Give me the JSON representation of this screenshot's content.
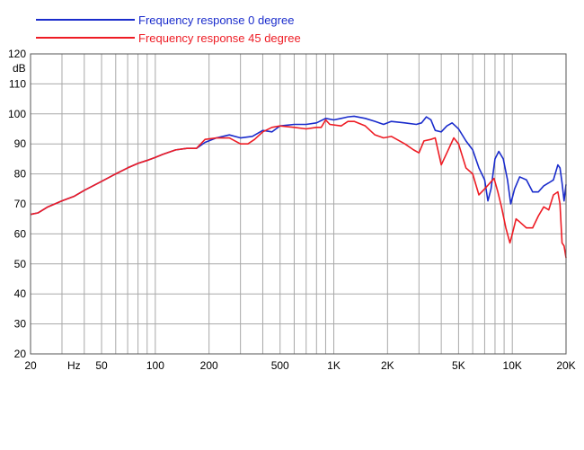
{
  "chart_data": {
    "type": "line",
    "title": "",
    "xlabel": "",
    "ylabel": "dB",
    "x_scale": "log",
    "xlim": [
      20,
      20000
    ],
    "ylim": [
      20,
      120
    ],
    "grid": true,
    "legend_position": "top-left",
    "y_ticks": [
      20,
      30,
      40,
      50,
      60,
      70,
      80,
      90,
      100,
      110,
      120
    ],
    "x_tick_labels": [
      {
        "value": 20,
        "label": "20"
      },
      {
        "value": 35,
        "label": "Hz"
      },
      {
        "value": 50,
        "label": "50"
      },
      {
        "value": 100,
        "label": "100"
      },
      {
        "value": 200,
        "label": "200"
      },
      {
        "value": 500,
        "label": "500"
      },
      {
        "value": 1000,
        "label": "1K"
      },
      {
        "value": 2000,
        "label": "2K"
      },
      {
        "value": 5000,
        "label": "5K"
      },
      {
        "value": 10000,
        "label": "10K"
      },
      {
        "value": 20000,
        "label": "20K"
      }
    ],
    "series": [
      {
        "name": "Frequency response 0 degree",
        "color": "#1a2ccc",
        "points": [
          [
            20,
            66.5
          ],
          [
            22,
            67
          ],
          [
            25,
            69
          ],
          [
            30,
            71
          ],
          [
            35,
            72.5
          ],
          [
            40,
            74.5
          ],
          [
            50,
            77.5
          ],
          [
            60,
            80
          ],
          [
            70,
            82
          ],
          [
            80,
            83.5
          ],
          [
            90,
            84.5
          ],
          [
            100,
            85.5
          ],
          [
            110,
            86.5
          ],
          [
            130,
            88
          ],
          [
            150,
            88.5
          ],
          [
            170,
            88.5
          ],
          [
            190,
            90.5
          ],
          [
            220,
            92
          ],
          [
            260,
            93
          ],
          [
            300,
            92
          ],
          [
            350,
            92.5
          ],
          [
            400,
            94.5
          ],
          [
            450,
            94
          ],
          [
            500,
            96
          ],
          [
            600,
            96.5
          ],
          [
            700,
            96.5
          ],
          [
            800,
            97
          ],
          [
            900,
            98.5
          ],
          [
            1000,
            98
          ],
          [
            1100,
            98.5
          ],
          [
            1200,
            99
          ],
          [
            1300,
            99.2
          ],
          [
            1500,
            98.5
          ],
          [
            1700,
            97.5
          ],
          [
            1900,
            96.5
          ],
          [
            2100,
            97.5
          ],
          [
            2500,
            97
          ],
          [
            2900,
            96.5
          ],
          [
            3100,
            97
          ],
          [
            3300,
            99
          ],
          [
            3500,
            98
          ],
          [
            3700,
            94.5
          ],
          [
            4000,
            94
          ],
          [
            4300,
            96
          ],
          [
            4600,
            97
          ],
          [
            5000,
            95
          ],
          [
            5500,
            91
          ],
          [
            6000,
            88
          ],
          [
            6500,
            82
          ],
          [
            7000,
            78
          ],
          [
            7300,
            71
          ],
          [
            7600,
            75
          ],
          [
            8000,
            85
          ],
          [
            8400,
            87.5
          ],
          [
            8900,
            85
          ],
          [
            9400,
            78
          ],
          [
            9800,
            70
          ],
          [
            10300,
            75
          ],
          [
            11000,
            79
          ],
          [
            12000,
            78
          ],
          [
            13000,
            74
          ],
          [
            14000,
            74
          ],
          [
            15000,
            76
          ],
          [
            16000,
            77
          ],
          [
            17000,
            78
          ],
          [
            18000,
            83
          ],
          [
            18500,
            82
          ],
          [
            19000,
            77
          ],
          [
            19500,
            71
          ],
          [
            20000,
            76.5
          ]
        ]
      },
      {
        "name": "Frequency response 45 degree",
        "color": "#ee1c24",
        "points": [
          [
            20,
            66.5
          ],
          [
            22,
            67
          ],
          [
            25,
            69
          ],
          [
            30,
            71
          ],
          [
            35,
            72.5
          ],
          [
            40,
            74.5
          ],
          [
            50,
            77.5
          ],
          [
            60,
            80
          ],
          [
            70,
            82
          ],
          [
            80,
            83.5
          ],
          [
            90,
            84.5
          ],
          [
            100,
            85.5
          ],
          [
            110,
            86.5
          ],
          [
            130,
            88
          ],
          [
            150,
            88.5
          ],
          [
            170,
            88.5
          ],
          [
            190,
            91.5
          ],
          [
            220,
            92
          ],
          [
            260,
            92
          ],
          [
            300,
            90
          ],
          [
            330,
            90
          ],
          [
            360,
            91.5
          ],
          [
            400,
            94
          ],
          [
            450,
            95.5
          ],
          [
            500,
            96
          ],
          [
            600,
            95.5
          ],
          [
            700,
            95
          ],
          [
            800,
            95.5
          ],
          [
            850,
            95.5
          ],
          [
            900,
            98
          ],
          [
            950,
            96.5
          ],
          [
            1100,
            96
          ],
          [
            1200,
            97.5
          ],
          [
            1300,
            97.5
          ],
          [
            1500,
            96
          ],
          [
            1700,
            93
          ],
          [
            1900,
            92
          ],
          [
            2100,
            92.5
          ],
          [
            2500,
            90
          ],
          [
            2800,
            88
          ],
          [
            3000,
            87
          ],
          [
            3200,
            91
          ],
          [
            3500,
            91.5
          ],
          [
            3700,
            92
          ],
          [
            4000,
            83
          ],
          [
            4300,
            87
          ],
          [
            4700,
            92
          ],
          [
            5000,
            90
          ],
          [
            5500,
            82
          ],
          [
            6000,
            80
          ],
          [
            6500,
            73
          ],
          [
            7000,
            75
          ],
          [
            7500,
            77
          ],
          [
            7900,
            78.5
          ],
          [
            8300,
            74
          ],
          [
            8700,
            69
          ],
          [
            9200,
            62
          ],
          [
            9700,
            57
          ],
          [
            10000,
            60
          ],
          [
            10500,
            65
          ],
          [
            11000,
            64
          ],
          [
            12000,
            62
          ],
          [
            13000,
            62
          ],
          [
            14000,
            66
          ],
          [
            15000,
            69
          ],
          [
            16000,
            68
          ],
          [
            17000,
            73
          ],
          [
            18000,
            74
          ],
          [
            18500,
            70
          ],
          [
            19000,
            57
          ],
          [
            19500,
            56
          ],
          [
            20000,
            52
          ]
        ]
      }
    ]
  }
}
